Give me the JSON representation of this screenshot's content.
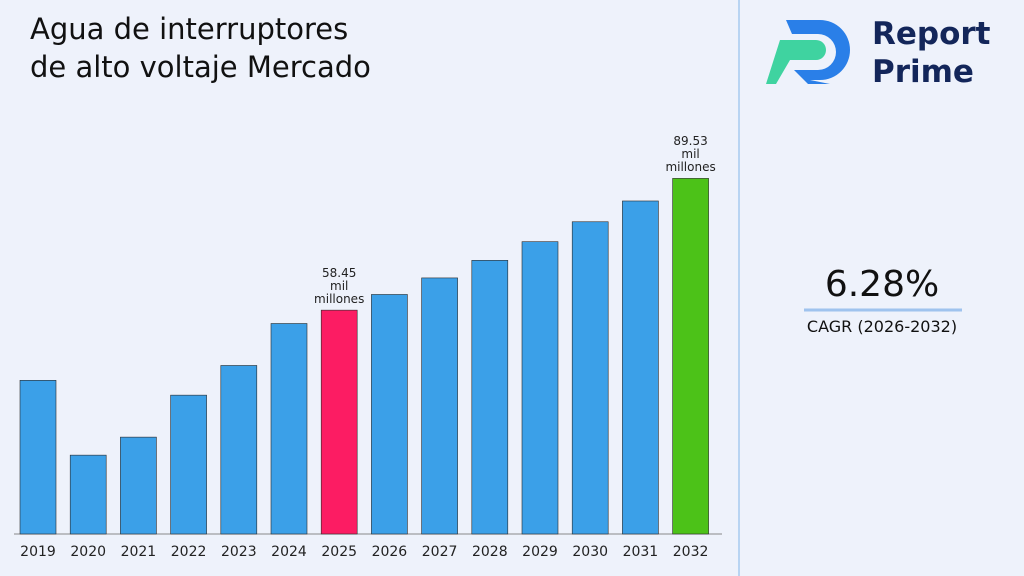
{
  "chart_data": {
    "type": "bar",
    "title": "Agua de interruptores de alto voltaje Mercado",
    "categories": [
      "2019",
      "2020",
      "2021",
      "2022",
      "2023",
      "2024",
      "2025",
      "2026",
      "2027",
      "2028",
      "2029",
      "2030",
      "2031",
      "2032"
    ],
    "values": [
      41.9,
      24.25,
      28.5,
      38.4,
      45.4,
      55.3,
      58.45,
      62.15,
      66.05,
      70.2,
      74.6,
      79.3,
      84.2,
      89.53
    ],
    "value_labels": [
      null,
      null,
      null,
      null,
      null,
      null,
      "58.45 mil millones",
      null,
      null,
      null,
      null,
      null,
      null,
      "89.53 mil millones"
    ],
    "colors": [
      "#3ba0e8",
      "#3ba0e8",
      "#3ba0e8",
      "#3ba0e8",
      "#3ba0e8",
      "#3ba0e8",
      "#fc1c63",
      "#3ba0e8",
      "#3ba0e8",
      "#3ba0e8",
      "#3ba0e8",
      "#3ba0e8",
      "#3ba0e8",
      "#4cc218"
    ],
    "ylim": [
      5.65,
      100
    ]
  },
  "brand": {
    "line1": "Report",
    "line2": "Prime"
  },
  "cagr": {
    "value": "6.28%",
    "label": "CAGR (2026-2032)"
  }
}
